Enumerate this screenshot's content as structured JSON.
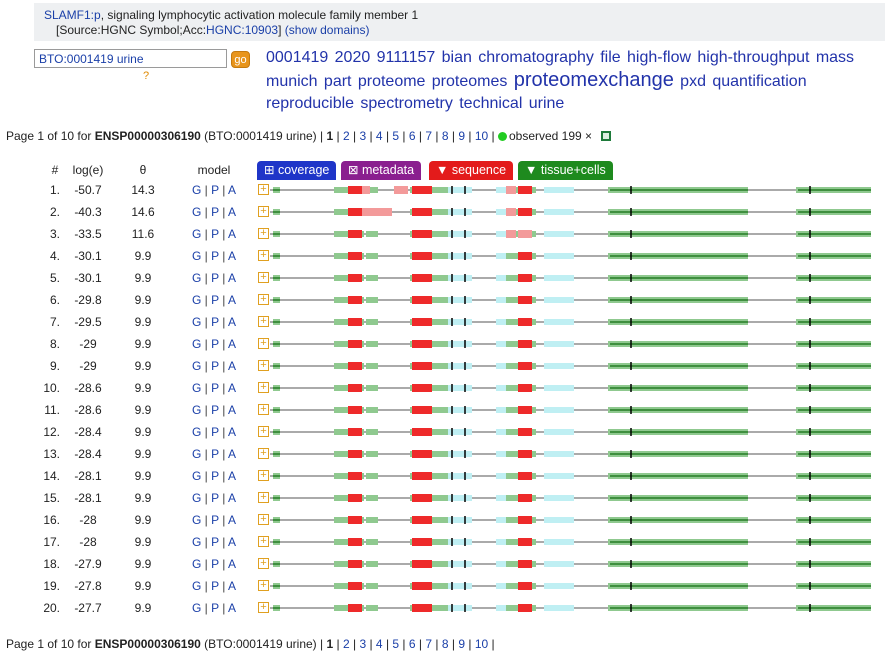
{
  "header": {
    "gene_symbol": "SLAMF1:p",
    "gene_desc": ", signaling lymphocytic activation molecule family member 1",
    "source_prefix": "[Source:HGNC Symbol;Acc:",
    "hgnc_link": "HGNC:10903",
    "source_suffix": "]",
    "show_domains": "(show domains)"
  },
  "search": {
    "value": "BTO:0001419 urine",
    "go_label": "go",
    "help_label": "?"
  },
  "tag_cloud": [
    {
      "text": "0001419",
      "size": 16
    },
    {
      "text": "2020",
      "size": 16
    },
    {
      "text": "9111157",
      "size": 16
    },
    {
      "text": "bian",
      "size": 16
    },
    {
      "text": "chromatography",
      "size": 16
    },
    {
      "text": "file",
      "size": 16
    },
    {
      "text": "high-flow",
      "size": 16
    },
    {
      "text": "high-throughput",
      "size": 16
    },
    {
      "text": "mass",
      "size": 16
    },
    {
      "text": "munich",
      "size": 16
    },
    {
      "text": "part",
      "size": 16
    },
    {
      "text": "proteome",
      "size": 16
    },
    {
      "text": "proteomes",
      "size": 16
    },
    {
      "text": "proteomexchange",
      "size": 20
    },
    {
      "text": "pxd",
      "size": 16
    },
    {
      "text": "quantification",
      "size": 16
    },
    {
      "text": "reproducible",
      "size": 16
    },
    {
      "text": "spectrometry",
      "size": 16
    },
    {
      "text": "technical",
      "size": 16
    },
    {
      "text": "urine",
      "size": 16
    }
  ],
  "pager": {
    "prefix": "Page 1 of 10 for ",
    "protein": "ENSP00000306190",
    "context": " (BTO:0001419 urine) |",
    "current": "1",
    "pages": [
      "2",
      "3",
      "4",
      "5",
      "6",
      "7",
      "8",
      "9",
      "10"
    ],
    "observed_label": "observed 199 ×"
  },
  "columns": {
    "num": "#",
    "loge": "log(e)",
    "theta": "θ",
    "model": "model"
  },
  "tabs": [
    {
      "label": "⊞ coverage",
      "color": "#1f35c8"
    },
    {
      "label": "⊠ metadata",
      "color": "#8a1f8f"
    },
    {
      "label": "▼ sequence",
      "color": "#e31b1b"
    },
    {
      "label": "▼ tissue+cells",
      "color": "#1e8a1e"
    }
  ],
  "model_links": [
    "G",
    "P",
    "A"
  ],
  "rows": [
    {
      "num": "1.",
      "loge": "-50.7",
      "theta": "14.3"
    },
    {
      "num": "2.",
      "loge": "-40.3",
      "theta": "14.6"
    },
    {
      "num": "3.",
      "loge": "-33.5",
      "theta": "11.6"
    },
    {
      "num": "4.",
      "loge": "-30.1",
      "theta": "9.9"
    },
    {
      "num": "5.",
      "loge": "-30.1",
      "theta": "9.9"
    },
    {
      "num": "6.",
      "loge": "-29.8",
      "theta": "9.9"
    },
    {
      "num": "7.",
      "loge": "-29.5",
      "theta": "9.9"
    },
    {
      "num": "8.",
      "loge": "-29",
      "theta": "9.9"
    },
    {
      "num": "9.",
      "loge": "-29",
      "theta": "9.9"
    },
    {
      "num": "10.",
      "loge": "-28.6",
      "theta": "9.9"
    },
    {
      "num": "11.",
      "loge": "-28.6",
      "theta": "9.9"
    },
    {
      "num": "12.",
      "loge": "-28.4",
      "theta": "9.9"
    },
    {
      "num": "13.",
      "loge": "-28.4",
      "theta": "9.9"
    },
    {
      "num": "14.",
      "loge": "-28.1",
      "theta": "9.9"
    },
    {
      "num": "15.",
      "loge": "-28.1",
      "theta": "9.9"
    },
    {
      "num": "16.",
      "loge": "-28",
      "theta": "9.9"
    },
    {
      "num": "17.",
      "loge": "-28",
      "theta": "9.9"
    },
    {
      "num": "18.",
      "loge": "-27.9",
      "theta": "9.9"
    },
    {
      "num": "19.",
      "loge": "-27.8",
      "theta": "9.9"
    },
    {
      "num": "20.",
      "loge": "-27.7",
      "theta": "9.9"
    }
  ],
  "colors": {
    "peptide_strong": "#ee2a2a",
    "peptide_light": "#f39a9a",
    "exon_green": "#8fc98f",
    "exon_dark": "#3f8f3f",
    "exon_cyan": "#bfeff3",
    "backbone": "#555555"
  }
}
